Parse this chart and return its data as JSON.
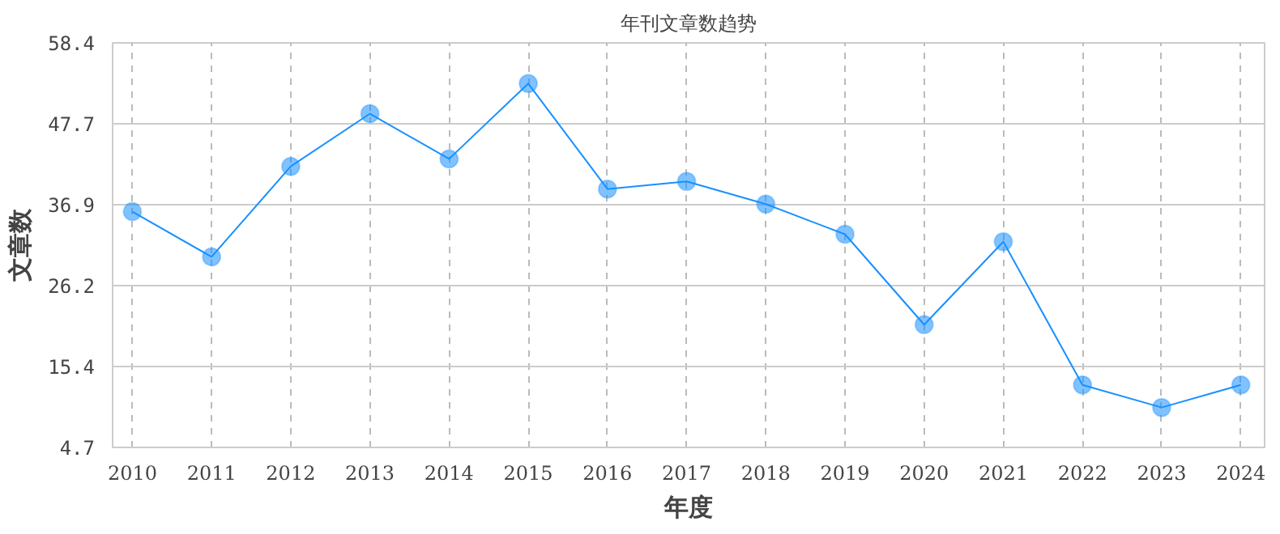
{
  "chart_data": {
    "type": "line",
    "title": "年刊文章数趋势",
    "xlabel": "年度",
    "ylabel": "文章数",
    "categories": [
      "2010",
      "2011",
      "2012",
      "2013",
      "2014",
      "2015",
      "2016",
      "2017",
      "2018",
      "2019",
      "2020",
      "2021",
      "2022",
      "2023",
      "2024"
    ],
    "series": [
      {
        "color": "#1890ff",
        "values": [
          36,
          30,
          42,
          49,
          43,
          53,
          39,
          40,
          37,
          33,
          21,
          32,
          13,
          10,
          13
        ]
      }
    ],
    "ylim": [
      4.7,
      58.4
    ],
    "yticks": [
      4.7,
      15.4,
      26.2,
      36.9,
      47.7,
      58.4
    ],
    "grid": true,
    "marker": "circle",
    "line_style": "solid"
  }
}
